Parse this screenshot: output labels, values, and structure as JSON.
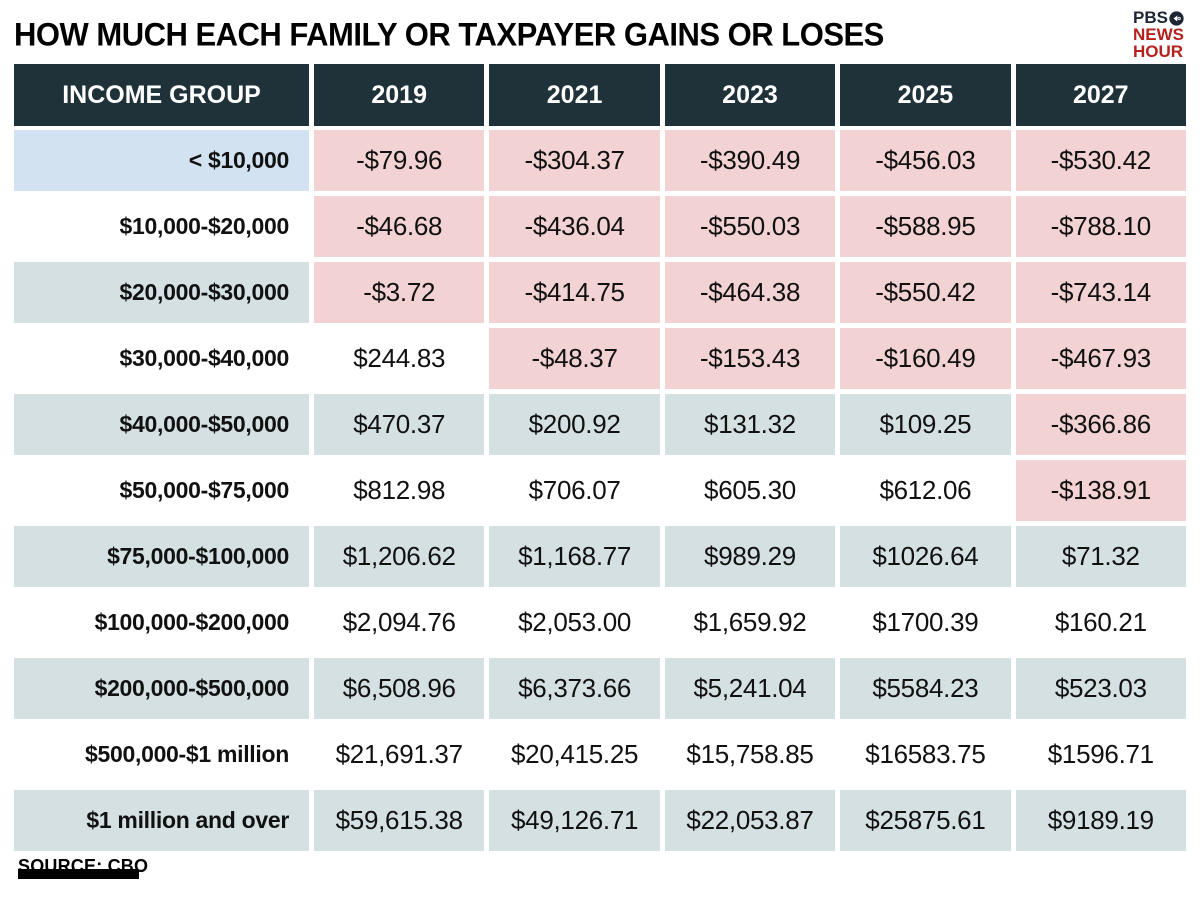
{
  "header": {
    "title": "HOW MUCH EACH FAMILY OR TAXPAYER GAINS OR LOSES",
    "logo": {
      "pbs": "PBS",
      "news": "NEWS",
      "hour": "HOUR"
    }
  },
  "footer": {
    "source": "SOURCE: CBO"
  },
  "colors": {
    "header_bg": "#203239",
    "negative_bg": "#f2d2d2",
    "tint_teal_bg": "#d5e0e3",
    "tint_blue_bg": "#d2e2f0",
    "logo_navy": "#1d2433",
    "logo_red": "#b5211d"
  },
  "chart_data": {
    "type": "table",
    "title": "HOW MUCH EACH FAMILY OR TAXPAYER GAINS OR LOSES",
    "columns": [
      "INCOME GROUP",
      "2019",
      "2021",
      "2023",
      "2025",
      "2027"
    ],
    "rows": [
      {
        "group": "< $10,000",
        "tint": "blue",
        "values": [
          -79.96,
          -304.37,
          -390.49,
          -456.03,
          -530.42
        ],
        "display": [
          "-$79.96",
          "-$304.37",
          "-$390.49",
          "-$456.03",
          "-$530.42"
        ]
      },
      {
        "group": "$10,000-$20,000",
        "tint": "none",
        "values": [
          -46.68,
          -436.04,
          -550.03,
          -588.95,
          -788.1
        ],
        "display": [
          "-$46.68",
          "-$436.04",
          "-$550.03",
          "-$588.95",
          "-$788.10"
        ]
      },
      {
        "group": "$20,000-$30,000",
        "tint": "teal",
        "values": [
          -3.72,
          -414.75,
          -464.38,
          -550.42,
          -743.14
        ],
        "display": [
          "-$3.72",
          "-$414.75",
          "-$464.38",
          "-$550.42",
          "-$743.14"
        ]
      },
      {
        "group": "$30,000-$40,000",
        "tint": "none",
        "values": [
          244.83,
          -48.37,
          -153.43,
          -160.49,
          -467.93
        ],
        "display": [
          "$244.83",
          "-$48.37",
          "-$153.43",
          "-$160.49",
          "-$467.93"
        ]
      },
      {
        "group": "$40,000-$50,000",
        "tint": "teal",
        "values": [
          470.37,
          200.92,
          131.32,
          109.25,
          -366.86
        ],
        "display": [
          "$470.37",
          "$200.92",
          "$131.32",
          "$109.25",
          "-$366.86"
        ]
      },
      {
        "group": "$50,000-$75,000",
        "tint": "none",
        "values": [
          812.98,
          706.07,
          605.3,
          612.06,
          -138.91
        ],
        "display": [
          "$812.98",
          "$706.07",
          "$605.30",
          "$612.06",
          "-$138.91"
        ]
      },
      {
        "group": "$75,000-$100,000",
        "tint": "teal",
        "values": [
          1206.62,
          1168.77,
          989.29,
          1026.64,
          71.32
        ],
        "display": [
          "$1,206.62",
          "$1,168.77",
          "$989.29",
          "$1026.64",
          "$71.32"
        ]
      },
      {
        "group": "$100,000-$200,000",
        "tint": "none",
        "values": [
          2094.76,
          2053.0,
          1659.92,
          1700.39,
          160.21
        ],
        "display": [
          "$2,094.76",
          "$2,053.00",
          "$1,659.92",
          "$1700.39",
          "$160.21"
        ]
      },
      {
        "group": "$200,000-$500,000",
        "tint": "teal",
        "values": [
          6508.96,
          6373.66,
          5241.04,
          5584.23,
          523.03
        ],
        "display": [
          "$6,508.96",
          "$6,373.66",
          "$5,241.04",
          "$5584.23",
          "$523.03"
        ]
      },
      {
        "group": "$500,000-$1 million",
        "tint": "none",
        "values": [
          21691.37,
          20415.25,
          15758.85,
          16583.75,
          1596.71
        ],
        "display": [
          "$21,691.37",
          "$20,415.25",
          "$15,758.85",
          "$16583.75",
          "$1596.71"
        ]
      },
      {
        "group": "$1 million and over",
        "tint": "teal",
        "values": [
          59615.38,
          49126.71,
          22053.87,
          25875.61,
          9189.19
        ],
        "display": [
          "$59,615.38",
          "$49,126.71",
          "$22,053.87",
          "$25875.61",
          "$9189.19"
        ]
      }
    ]
  }
}
